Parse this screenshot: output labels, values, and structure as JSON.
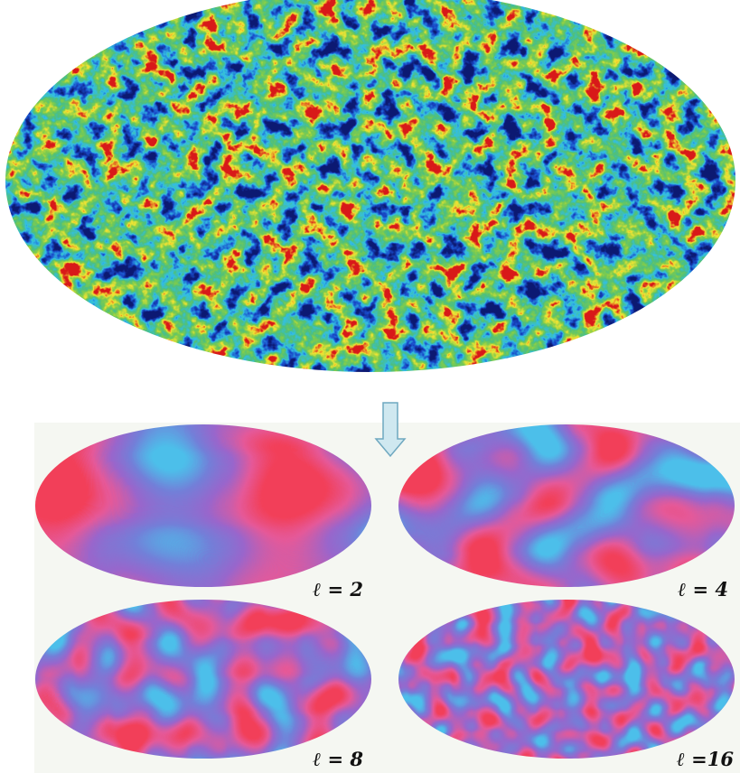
{
  "panels": [
    {
      "label": "ℓ = 2"
    },
    {
      "label": "ℓ = 4"
    },
    {
      "label": "ℓ = 8"
    },
    {
      "label": "ℓ =16"
    }
  ]
}
